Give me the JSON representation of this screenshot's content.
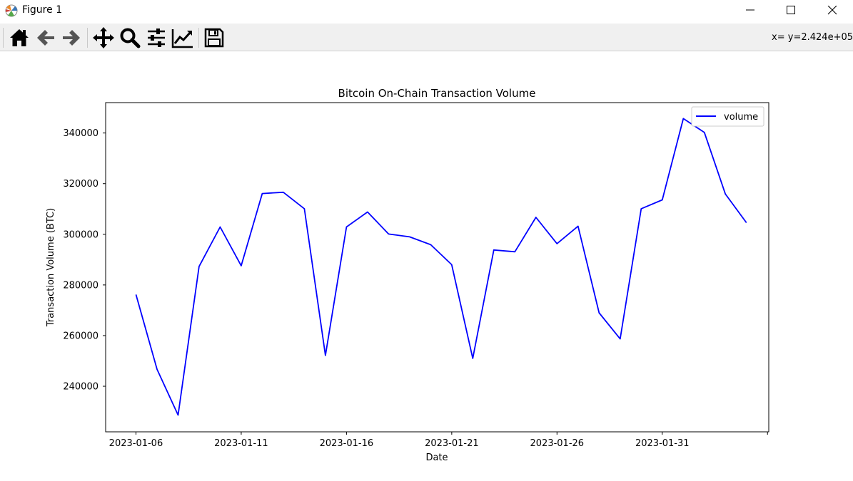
{
  "window": {
    "title": "Figure 1",
    "icon": "matplotlib-icon",
    "controls": [
      "minimize-icon",
      "maximize-icon",
      "close-icon"
    ]
  },
  "toolbar": {
    "tools": [
      "home-icon",
      "back-arrow-icon",
      "forward-arrow-icon",
      "pan-icon",
      "zoom-icon",
      "configure-subplots-icon",
      "edit-axis-icon",
      "save-icon"
    ],
    "coordinates": "x= y=2.424e+05"
  },
  "colors": {
    "line": "#0000ff",
    "toolbar_bg": "#f0f0f0"
  },
  "chart_data": {
    "type": "line",
    "title": "Bitcoin On-Chain Transaction Volume",
    "xlabel": "Date",
    "ylabel": "Transaction Volume (BTC)",
    "x": [
      "2023-01-06",
      "2023-01-07",
      "2023-01-08",
      "2023-01-09",
      "2023-01-10",
      "2023-01-11",
      "2023-01-12",
      "2023-01-13",
      "2023-01-14",
      "2023-01-15",
      "2023-01-16",
      "2023-01-17",
      "2023-01-18",
      "2023-01-19",
      "2023-01-20",
      "2023-01-21",
      "2023-01-22",
      "2023-01-23",
      "2023-01-24",
      "2023-01-25",
      "2023-01-26",
      "2023-01-27",
      "2023-01-28",
      "2023-01-29",
      "2023-01-30",
      "2023-01-31",
      "2023-02-01",
      "2023-02-02",
      "2023-02-03",
      "2023-02-04"
    ],
    "series": [
      {
        "name": "volume",
        "values": [
          276200,
          246700,
          228600,
          287300,
          302900,
          287600,
          316100,
          316600,
          310100,
          252200,
          302900,
          308800,
          300100,
          299000,
          295900,
          288000,
          251000,
          293800,
          293100,
          306700,
          296300,
          303200,
          269000,
          258700,
          310100,
          313600,
          345700,
          340200,
          315900,
          304600
        ]
      }
    ],
    "xticks": [
      "2023-01-06",
      "2023-01-11",
      "2023-01-16",
      "2023-01-21",
      "2023-01-26",
      "2023-01-31"
    ],
    "yticks": [
      240000,
      260000,
      280000,
      300000,
      320000,
      340000
    ],
    "xlim": [
      "2023-01-04.56",
      "2023-02-05.06"
    ],
    "ylim": [
      222000,
      352000
    ],
    "legend": "top-right",
    "grid": false
  }
}
